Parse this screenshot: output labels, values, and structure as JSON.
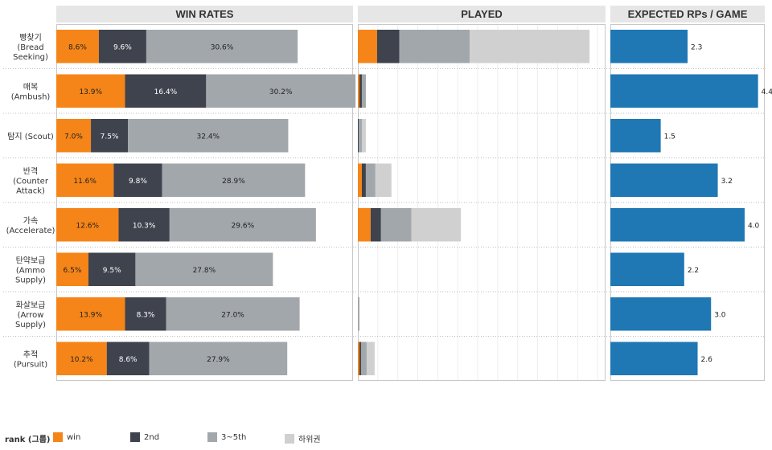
{
  "headers": {
    "win_rates": "WIN RATES",
    "played": "PLAYED",
    "expected": "EXPECTED RPs / GAME"
  },
  "legend": {
    "title": "rank (그룹)",
    "items": [
      {
        "label": "win",
        "color": "#f58518"
      },
      {
        "label": "2nd",
        "color": "#3f434d"
      },
      {
        "label": "3~5th",
        "color": "#a2a7ab"
      },
      {
        "label": "하위권",
        "color": "#d0d0d0"
      }
    ]
  },
  "chart_data": [
    {
      "type": "bar",
      "stacked": true,
      "orientation": "horizontal",
      "title": "WIN RATES",
      "categories": [
        [
          "빵찾기",
          "(Bread",
          "Seeking)"
        ],
        [
          "매복",
          "(Ambush)"
        ],
        [
          "탐지 (Scout)"
        ],
        [
          "반격",
          "(Counter",
          "Attack)"
        ],
        [
          "가속",
          "(Accelerate)"
        ],
        [
          "탄약보급",
          "(Ammo",
          "Supply)"
        ],
        [
          "화살보급",
          "(Arrow",
          "Supply)"
        ],
        [
          "추적",
          "(Pursuit)"
        ]
      ],
      "series": [
        {
          "name": "win",
          "color": "#f58518",
          "values": [
            8.6,
            13.9,
            7.0,
            11.6,
            12.6,
            6.5,
            13.9,
            10.2
          ],
          "labels": [
            "8.6%",
            "13.9%",
            "7.0%",
            "11.6%",
            "12.6%",
            "6.5%",
            "13.9%",
            "10.2%"
          ]
        },
        {
          "name": "2nd",
          "color": "#3f434d",
          "values": [
            9.6,
            16.4,
            7.5,
            9.8,
            10.3,
            9.5,
            8.3,
            8.6
          ],
          "labels": [
            "9.6%",
            "16.4%",
            "7.5%",
            "9.8%",
            "10.3%",
            "9.5%",
            "8.3%",
            "8.6%"
          ]
        },
        {
          "name": "3~5th",
          "color": "#a2a7ab",
          "values": [
            30.6,
            30.2,
            32.4,
            28.9,
            29.6,
            27.8,
            27.0,
            27.9
          ],
          "labels": [
            "30.6%",
            "30.2%",
            "32.4%",
            "28.9%",
            "29.6%",
            "27.8%",
            "27.0%",
            "27.9%"
          ]
        }
      ],
      "xlim": [
        0,
        60
      ]
    },
    {
      "type": "bar",
      "stacked": true,
      "orientation": "horizontal",
      "title": "PLAYED",
      "series": [
        {
          "name": "win",
          "color": "#f58518",
          "values": [
            24,
            2,
            0,
            5,
            16,
            0,
            0,
            2
          ]
        },
        {
          "name": "2nd",
          "color": "#3f434d",
          "values": [
            28,
            3,
            1,
            5,
            13,
            0,
            0,
            2
          ]
        },
        {
          "name": "3~5th",
          "color": "#a2a7ab",
          "values": [
            88,
            5,
            4,
            12,
            38,
            0,
            2,
            7
          ]
        },
        {
          "name": "하위권",
          "color": "#d0d0d0",
          "values": [
            150,
            0,
            5,
            20,
            62,
            0,
            0,
            10
          ]
        }
      ],
      "xlim": [
        0,
        310
      ],
      "grid": true
    },
    {
      "type": "bar",
      "orientation": "horizontal",
      "title": "EXPECTED RPs / GAME",
      "values": [
        2.3,
        4.4,
        1.5,
        3.2,
        4.0,
        2.2,
        3.0,
        2.6
      ],
      "labels": [
        "2.3",
        "4.4",
        "1.5",
        "3.2",
        "4.0",
        "2.2",
        "3.0",
        "2.6"
      ],
      "color": "#1f77b4",
      "xlim": [
        0,
        4.6
      ]
    }
  ]
}
